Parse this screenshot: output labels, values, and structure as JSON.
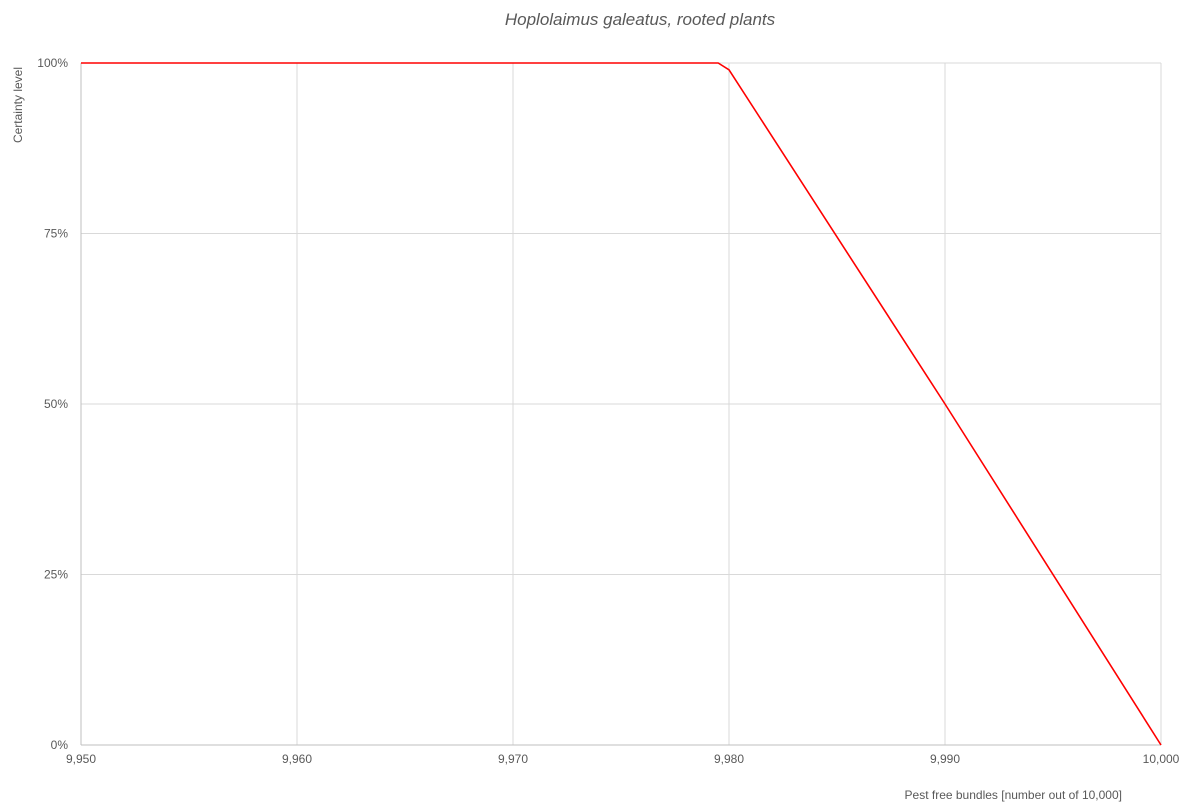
{
  "chart_data": {
    "type": "line",
    "title": "Hoplolaimus galeatus, rooted plants",
    "xlabel": "Pest free bundles [number out of 10,000]",
    "ylabel": "Certainty level",
    "xlim": [
      9950,
      10000
    ],
    "ylim": [
      0,
      1
    ],
    "x_ticks": [
      9950,
      9960,
      9970,
      9980,
      9990,
      10000
    ],
    "x_tick_labels": [
      "9,950",
      "9,960",
      "9,970",
      "9,980",
      "9,990",
      "10,000"
    ],
    "y_ticks": [
      0,
      0.25,
      0.5,
      0.75,
      1
    ],
    "y_tick_labels": [
      "0%",
      "25%",
      "50%",
      "75%",
      "100%"
    ],
    "grid": true,
    "legend": "none",
    "series": [
      {
        "color": "#ff0000",
        "x": [
          9950,
          9979.5,
          9980,
          9990,
          10000
        ],
        "y": [
          1.0,
          1.0,
          0.99,
          0.5,
          0.0
        ]
      }
    ]
  }
}
